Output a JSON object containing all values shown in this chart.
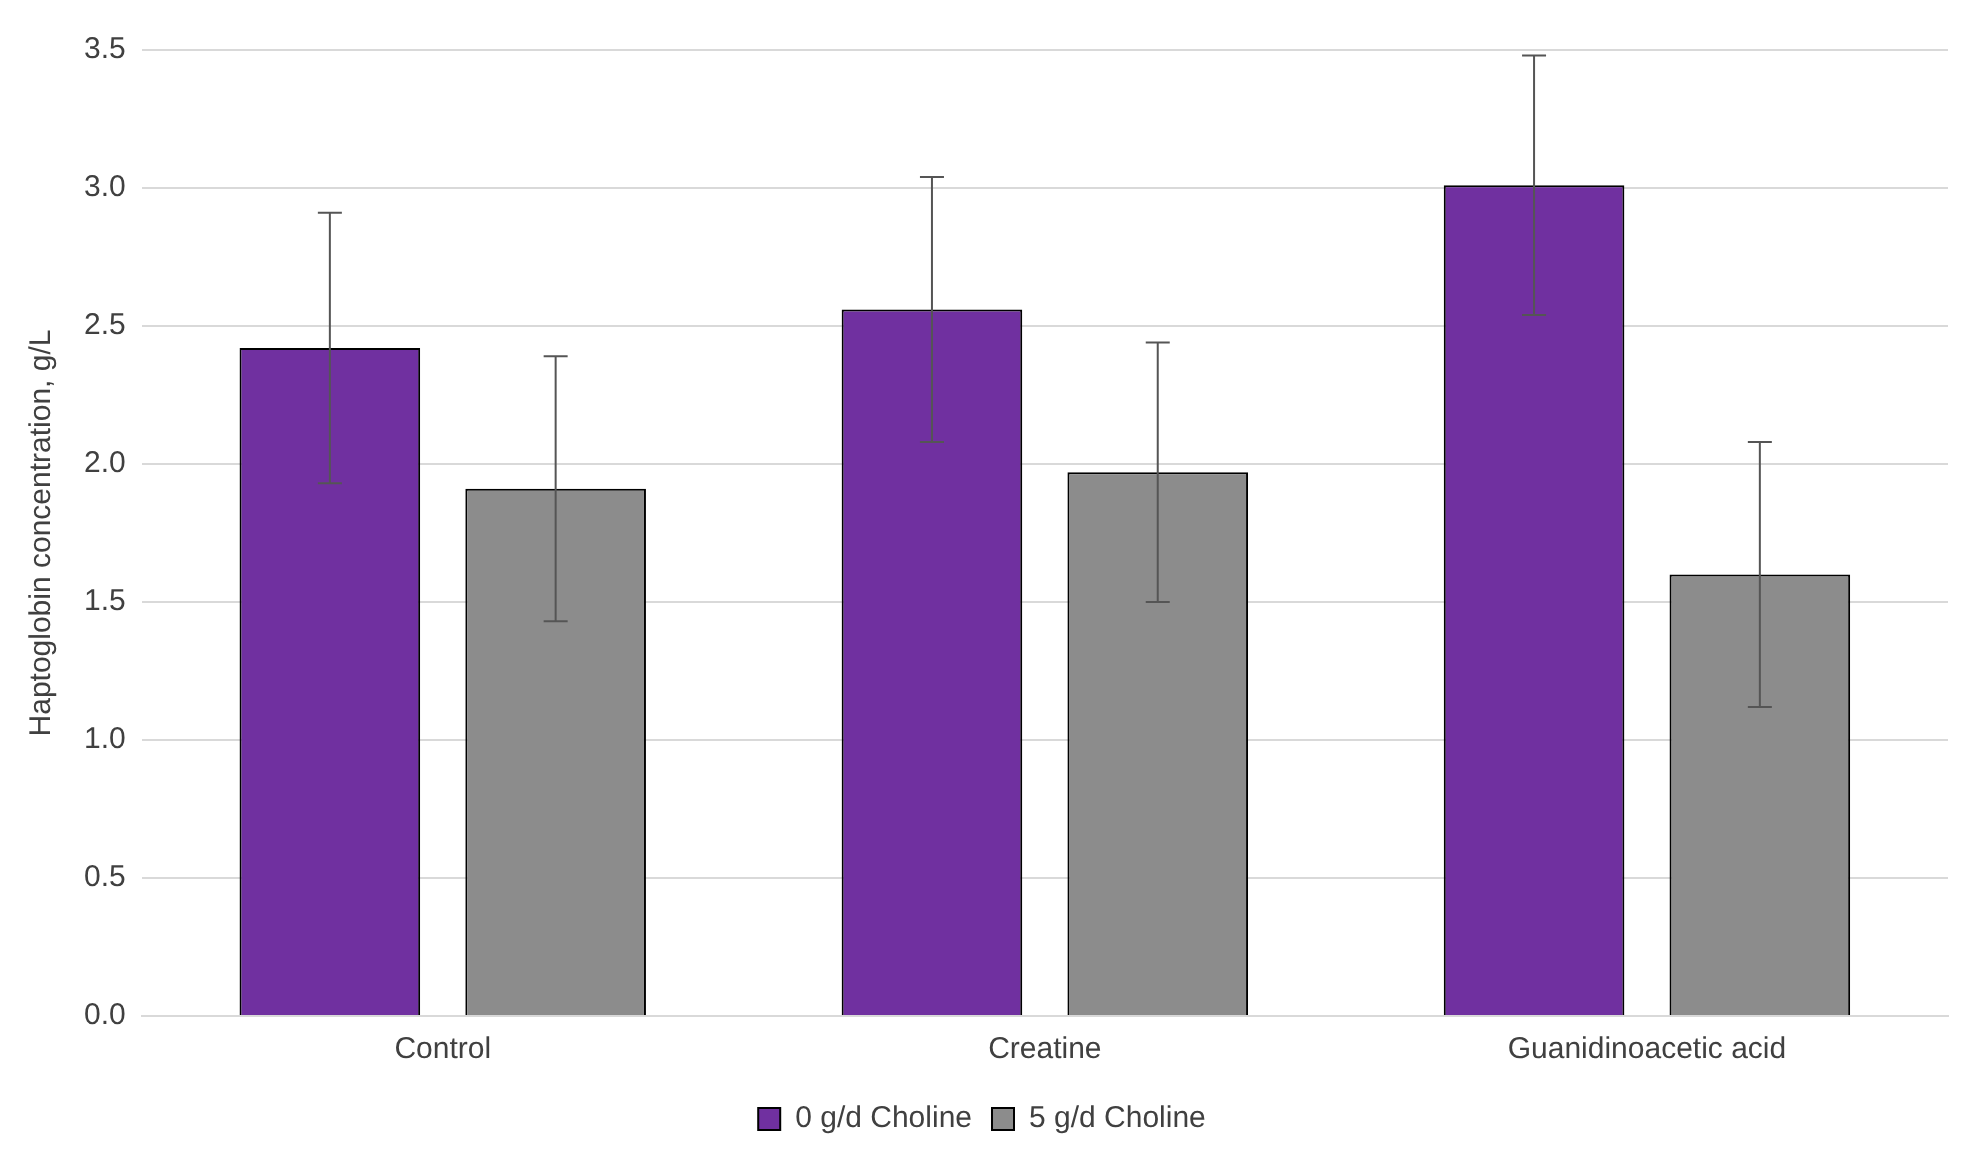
{
  "chart_data": {
    "type": "bar",
    "ylabel": "Haptoglobin concentration, g/L",
    "categories": [
      "Control",
      "Creatine",
      "Guanidinoacetic acid"
    ],
    "series": [
      {
        "name": "0 g/d Choline",
        "color": "#7030a0",
        "values": [
          2.42,
          2.56,
          3.01
        ],
        "errors": [
          0.49,
          0.48,
          0.47
        ]
      },
      {
        "name": "5 g/d Choline",
        "color": "#8c8c8c",
        "values": [
          1.91,
          1.97,
          1.6
        ],
        "errors": [
          0.48,
          0.47,
          0.48
        ]
      }
    ],
    "ylim": [
      0,
      3.5
    ],
    "yticks": [
      {
        "value": 0,
        "label": "0.0"
      },
      {
        "value": 0.5,
        "label": "0.5"
      },
      {
        "value": 1,
        "label": "1.0"
      },
      {
        "value": 1.5,
        "label": "1.5"
      },
      {
        "value": 2,
        "label": "2.0"
      },
      {
        "value": 2.5,
        "label": "2.5"
      },
      {
        "value": 3,
        "label": "3.0"
      },
      {
        "value": 3.5,
        "label": "3.5"
      }
    ],
    "grid": "y",
    "legend": "bottom"
  }
}
